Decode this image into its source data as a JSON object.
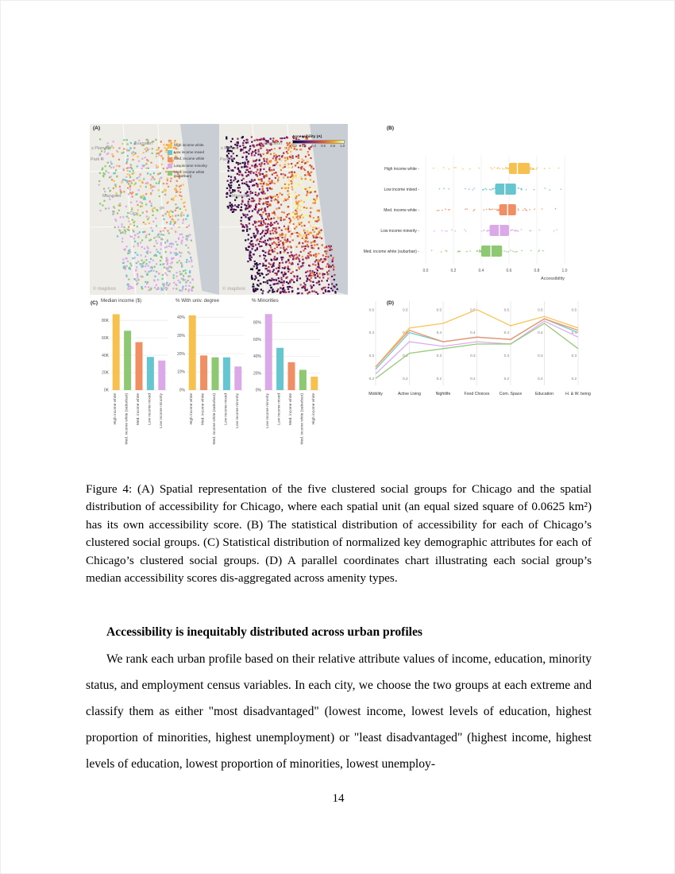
{
  "page": {
    "number": "14"
  },
  "figure": {
    "panel_a_label": "(A)",
    "panel_b_label": "(B)",
    "panel_c_label": "(C)",
    "panel_d_label": "(D)",
    "groups": [
      {
        "name": "High income white",
        "color": "#F6C14E"
      },
      {
        "name": "Low income mixed",
        "color": "#66C6CF"
      },
      {
        "name": "Med. income white",
        "color": "#EF8F63"
      },
      {
        "name": "Low income minority",
        "color": "#DCA9E8"
      },
      {
        "name": "Med. income white (suburban)",
        "color": "#8FC873"
      }
    ],
    "maps": {
      "left_labels": [
        "s Plaines",
        "Evanston",
        "Park R",
        "Maywood",
        "Cice",
        "go"
      ],
      "right_labels": [
        "s Plaines",
        "Evanston",
        "Park R",
        "Maywood"
      ],
      "watermark": "© mapbox",
      "colorbar": {
        "title": "Accessibility (A)",
        "ticks": [
          "0.0",
          "0.2",
          "0.4",
          "0.6",
          "0.8",
          "1.0"
        ]
      }
    }
  },
  "chart_data": [
    {
      "type": "box",
      "panel": "B",
      "xlabel": "Accessibility",
      "xlim": [
        0,
        1
      ],
      "xticks": [
        0,
        0.2,
        0.4,
        0.6,
        0.8,
        1
      ],
      "xtick_labels": [
        "0.0",
        "0.2",
        "0.4",
        "0.6",
        "0.8",
        "1.0"
      ],
      "categories": [
        "High income white",
        "Low income mixed",
        "Med. income white",
        "Low income minority",
        "Med. income white (suburban)"
      ],
      "boxes": [
        {
          "q1": 0.6,
          "median": 0.66,
          "q3": 0.75,
          "points_min": 0.05,
          "points_max": 1.0
        },
        {
          "q1": 0.5,
          "median": 0.57,
          "q3": 0.65,
          "points_min": 0.05,
          "points_max": 1.0
        },
        {
          "q1": 0.53,
          "median": 0.59,
          "q3": 0.65,
          "points_min": 0.08,
          "points_max": 0.98
        },
        {
          "q1": 0.46,
          "median": 0.53,
          "q3": 0.6,
          "points_min": 0.03,
          "points_max": 0.97
        },
        {
          "q1": 0.4,
          "median": 0.47,
          "q3": 0.55,
          "points_min": 0.02,
          "points_max": 0.92
        }
      ]
    },
    {
      "type": "bar",
      "panel": "C1",
      "title": "Median income ($)",
      "categories": [
        "High income white",
        "Med. income white (suburban)",
        "Med. income white",
        "Low income mixed",
        "Low income minority"
      ],
      "values": [
        87,
        68,
        55,
        38,
        34
      ],
      "ylim": [
        0,
        92
      ],
      "yticks": [
        0,
        20,
        40,
        60,
        80
      ],
      "ytick_labels": [
        "0K",
        "20K",
        "40K",
        "60K",
        "80K"
      ]
    },
    {
      "type": "bar",
      "panel": "C2",
      "title": "% With univ. degree",
      "categories": [
        "High income white",
        "Med. income white",
        "Med. income white (suburban)",
        "Low income mixed",
        "Low income minority"
      ],
      "values": [
        41,
        19,
        18,
        18,
        13
      ],
      "ylim": [
        0,
        44
      ],
      "yticks": [
        0,
        10,
        20,
        30,
        40
      ],
      "ytick_labels": [
        "0%",
        "10%",
        "20%",
        "30%",
        "40%"
      ]
    },
    {
      "type": "bar",
      "panel": "C3",
      "title": "% Minorities",
      "categories": [
        "Low income minority",
        "Low income mixed",
        "Med. income white",
        "Med. income white (suburban)",
        "High income white"
      ],
      "values": [
        90,
        50,
        33,
        24,
        16
      ],
      "ylim": [
        0,
        95
      ],
      "yticks": [
        0,
        20,
        40,
        60,
        80
      ],
      "ytick_labels": [
        "0%",
        "20%",
        "40%",
        "60%",
        "80%"
      ]
    },
    {
      "type": "line",
      "panel": "D",
      "chart": "parallel-coordinates",
      "axes": [
        "Mobility",
        "Active Living",
        "Nightlife",
        "Food Choices",
        "Com. Space",
        "Education",
        "H. & W. being"
      ],
      "ylim": [
        0.17,
        0.53
      ],
      "yticks": [
        0.5,
        0.4,
        0.3,
        0.2
      ],
      "series": [
        {
          "name": "High income white",
          "values": [
            0.25,
            0.42,
            0.44,
            0.5,
            0.43,
            0.47,
            0.42
          ]
        },
        {
          "name": "Low income mixed",
          "values": [
            0.24,
            0.4,
            0.36,
            0.38,
            0.37,
            0.46,
            0.4
          ]
        },
        {
          "name": "Med. income white",
          "values": [
            0.25,
            0.41,
            0.36,
            0.38,
            0.37,
            0.46,
            0.41
          ]
        },
        {
          "name": "Low income minority",
          "values": [
            0.22,
            0.36,
            0.34,
            0.36,
            0.35,
            0.45,
            0.38
          ]
        },
        {
          "name": "Med. income white (suburban)",
          "values": [
            0.2,
            0.31,
            0.33,
            0.35,
            0.35,
            0.44,
            0.33
          ]
        }
      ]
    }
  ],
  "caption": {
    "lines": [
      "Figure 4: (A) Spatial representation of the five clustered social groups for Chicago and the",
      "spatial distribution of accessibility for Chicago, where each spatial unit (an equal sized square",
      "of 0.0625 km²) has its own accessibility score. (B) The statistical distribution of accessibility",
      "for each of Chicago’s clustered social groups. (C) Statistical distribution of normalized key",
      "demographic attributes for each of Chicago’s clustered social groups. (D) A parallel coordinates",
      "chart illustrating each social group’s median accessibility scores dis-aggregated across amenity",
      "types."
    ]
  },
  "section": {
    "heading": "Accessibility is inequitably distributed across urban profiles",
    "body_lines": [
      "We rank each urban profile based on their relative attribute values of income, education,",
      "minority status, and employment census variables. In each city, we choose the two groups at",
      "each extreme and classify them as either \"most disadvantaged\" (lowest income, lowest levels",
      "of education, highest proportion of minorities, highest unemployment) or \"least disadvantaged\"",
      "(highest income, highest levels of education, lowest proportion of minorities, lowest unemploy-"
    ]
  }
}
